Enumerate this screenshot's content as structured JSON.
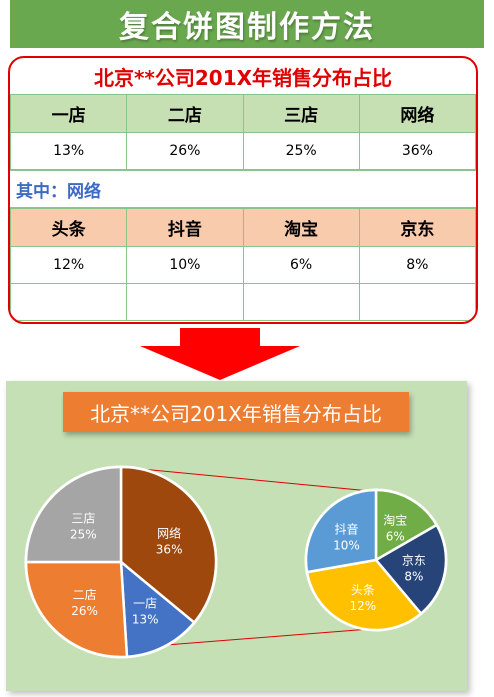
{
  "page_title": "复合饼图制作方法",
  "table_section": {
    "title": "北京**公司201X年销售分布占比",
    "stores_header": [
      "一店",
      "二店",
      "三店",
      "网络"
    ],
    "stores_values": [
      "13%",
      "26%",
      "25%",
      "36%"
    ],
    "sub_label": "其中：网络",
    "online_header": [
      "头条",
      "抖音",
      "淘宝",
      "京东"
    ],
    "online_values": [
      "12%",
      "10%",
      "6%",
      "8%"
    ]
  },
  "colors": {
    "banner": "#6aa84f",
    "title_red": "#e00000",
    "header_green": "#c6e0b4",
    "header_peach": "#f8cbad",
    "arrow_red": "#ff0000",
    "chart_bg": "#c5e0b4",
    "chart_title_bg": "#ed7d31"
  },
  "chart_data": {
    "type": "pie",
    "title": "北京**公司201X年销售分布占比",
    "main_pie": {
      "start_angle_deg": 0,
      "slices": [
        {
          "name": "网络",
          "value": 36,
          "label": "36%",
          "color": "#9e480e"
        },
        {
          "name": "一店",
          "value": 13,
          "label": "13%",
          "color": "#4472c4"
        },
        {
          "name": "二店",
          "value": 26,
          "label": "26%",
          "color": "#ed7d31"
        },
        {
          "name": "三店",
          "value": 25,
          "label": "25%",
          "color": "#a5a5a5"
        }
      ]
    },
    "secondary_pie": {
      "start_angle_deg": 0,
      "slices": [
        {
          "name": "淘宝",
          "value": 6,
          "label": "6%",
          "color": "#70ad47"
        },
        {
          "name": "京东",
          "value": 8,
          "label": "8%",
          "color": "#264478"
        },
        {
          "name": "头条",
          "value": 12,
          "label": "12%",
          "color": "#ffc000"
        },
        {
          "name": "抖音",
          "value": 10,
          "label": "10%",
          "color": "#5b9bd5"
        }
      ]
    }
  }
}
